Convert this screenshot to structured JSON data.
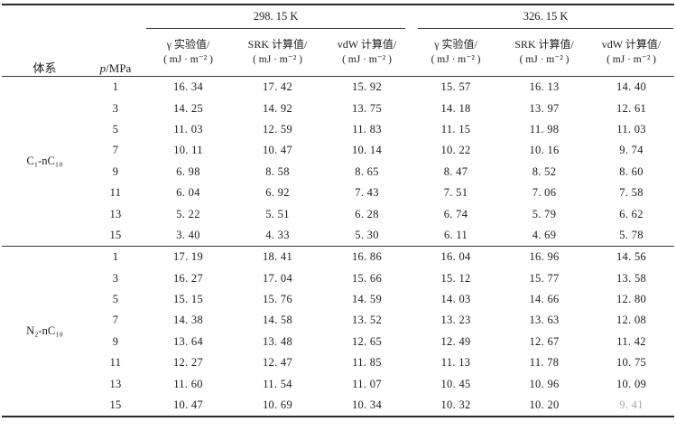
{
  "table": {
    "system_header": "体系",
    "pressure_header_symbol": "p",
    "pressure_header_rest": "/MPa",
    "temp_groups": [
      "298. 15 K",
      "326. 15 K"
    ],
    "sub_headers": [
      {
        "label": "γ 实验值/",
        "unit": "( mJ · m⁻² )"
      },
      {
        "label": "SRK 计算值/",
        "unit": "( mJ · m⁻² )"
      },
      {
        "label": "vdW 计算值/",
        "unit": "( mJ · m⁻² )"
      },
      {
        "label": "γ 实验值/",
        "unit": "( mJ · m⁻² )"
      },
      {
        "label": "SRK 计算值/",
        "unit": "( mJ · m⁻² )"
      },
      {
        "label": "vdW 计算值/",
        "unit": "( mJ · m⁻² )"
      }
    ],
    "systems": [
      {
        "name": "C₁-nC₁₀",
        "rows": [
          {
            "p": "1",
            "values": [
              "16. 34",
              "17. 42",
              "15. 92",
              "15. 57",
              "16. 13",
              "14. 40"
            ]
          },
          {
            "p": "3",
            "values": [
              "14. 25",
              "14. 92",
              "13. 75",
              "14. 18",
              "13. 97",
              "12. 61"
            ]
          },
          {
            "p": "5",
            "values": [
              "11. 03",
              "12. 59",
              "11. 83",
              "11. 15",
              "11. 98",
              "11. 03"
            ]
          },
          {
            "p": "7",
            "values": [
              "10. 11",
              "10. 47",
              "10. 14",
              "10. 22",
              "10. 16",
              "9. 74"
            ]
          },
          {
            "p": "9",
            "values": [
              "6. 98",
              "8. 58",
              "8. 65",
              "8. 47",
              "8. 52",
              "8. 60"
            ]
          },
          {
            "p": "11",
            "values": [
              "6. 04",
              "6. 92",
              "7. 43",
              "7. 51",
              "7. 06",
              "7. 58"
            ]
          },
          {
            "p": "13",
            "values": [
              "5. 22",
              "5. 51",
              "6. 28",
              "6. 74",
              "5. 79",
              "6. 62"
            ]
          },
          {
            "p": "15",
            "values": [
              "3. 40",
              "4. 33",
              "5. 30",
              "6. 11",
              "4. 69",
              "5. 78"
            ]
          }
        ]
      },
      {
        "name": "N₂-nC₁₀",
        "rows": [
          {
            "p": "1",
            "values": [
              "17. 19",
              "18. 41",
              "16. 86",
              "16. 04",
              "16. 96",
              "14. 56"
            ]
          },
          {
            "p": "3",
            "values": [
              "16. 27",
              "17. 04",
              "15. 66",
              "15. 12",
              "15. 77",
              "13. 58"
            ]
          },
          {
            "p": "5",
            "values": [
              "15. 15",
              "15. 76",
              "14. 59",
              "14. 03",
              "14. 66",
              "12. 80"
            ]
          },
          {
            "p": "7",
            "values": [
              "14. 38",
              "14. 58",
              "13. 52",
              "13. 23",
              "13. 63",
              "12. 08"
            ]
          },
          {
            "p": "9",
            "values": [
              "13. 64",
              "13. 48",
              "12. 65",
              "12. 49",
              "12. 67",
              "11. 42"
            ]
          },
          {
            "p": "11",
            "values": [
              "12. 27",
              "12. 47",
              "11. 85",
              "11. 13",
              "11. 78",
              "10. 75"
            ]
          },
          {
            "p": "13",
            "values": [
              "11. 60",
              "11. 54",
              "11. 07",
              "10. 45",
              "10. 96",
              "10. 09"
            ]
          },
          {
            "p": "15",
            "values": [
              "10. 47",
              "10. 69",
              "10. 34",
              "10. 32",
              "10. 20",
              "9. 41"
            ]
          }
        ]
      }
    ]
  }
}
